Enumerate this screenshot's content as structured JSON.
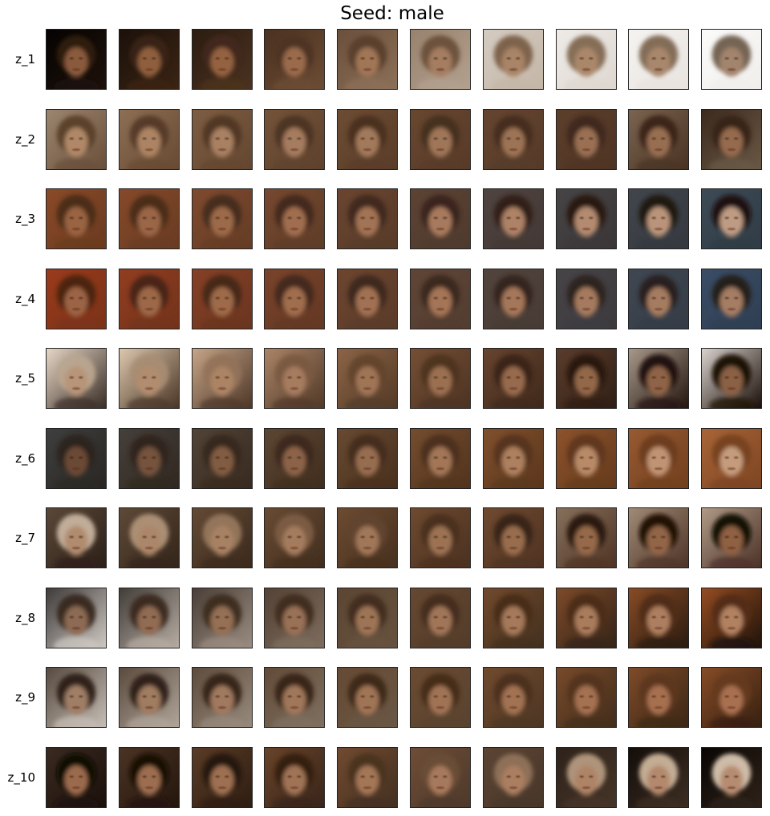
{
  "title": "Seed: male",
  "rows": [
    {
      "label": "z_1",
      "cells": [
        {
          "bg": "#050302",
          "bg2": "#1e120a",
          "hair": "#2e1b0f",
          "skin": "#8a5a3c"
        },
        {
          "bg": "#1b110a",
          "bg2": "#3a2414",
          "hair": "#3a2213",
          "skin": "#8f5e3e"
        },
        {
          "bg": "#2c1c11",
          "bg2": "#4b3220",
          "hair": "#41291a",
          "skin": "#946240"
        },
        {
          "bg": "#4a3120",
          "bg2": "#6c4c34",
          "hair": "#4d3322",
          "skin": "#9a6b4b"
        },
        {
          "bg": "#6a4f3b",
          "bg2": "#8c7058",
          "hair": "#5a3f2b",
          "skin": "#a07656"
        },
        {
          "bg": "#98826e",
          "bg2": "#b3a08e",
          "hair": "#6a4f3a",
          "skin": "#a57d60"
        },
        {
          "bg": "#d4cbc1",
          "bg2": "#c4b6a7",
          "hair": "#7a5e47",
          "skin": "#a98466"
        },
        {
          "bg": "#eeebe7",
          "bg2": "#ded7d0",
          "hair": "#80674f",
          "skin": "#ab876b"
        },
        {
          "bg": "#f5f3f1",
          "bg2": "#e8e3de",
          "hair": "#7d6650",
          "skin": "#a9876c"
        },
        {
          "bg": "#fbfbfa",
          "bg2": "#f0eeeb",
          "hair": "#6f5c4b",
          "skin": "#a3846d"
        }
      ]
    },
    {
      "label": "z_2",
      "cells": [
        {
          "bg": "#9c8670",
          "bg2": "#6a4f3a",
          "hair": "#5a3e29",
          "skin": "#b08868"
        },
        {
          "bg": "#8d6f55",
          "bg2": "#684a33",
          "hair": "#553926",
          "skin": "#ad8464"
        },
        {
          "bg": "#7d5d43",
          "bg2": "#644630",
          "hair": "#503523",
          "skin": "#a98062"
        },
        {
          "bg": "#735339",
          "bg2": "#5e412c",
          "hair": "#4c3322",
          "skin": "#a67c5e"
        },
        {
          "bg": "#6c4c33",
          "bg2": "#5a3d29",
          "hair": "#483020",
          "skin": "#a3795b"
        },
        {
          "bg": "#684730",
          "bg2": "#573a27",
          "hair": "#452e1e",
          "skin": "#a07658"
        },
        {
          "bg": "#654530",
          "bg2": "#553a28",
          "hair": "#432c1d",
          "skin": "#9d7355"
        },
        {
          "bg": "#5c3f2b",
          "bg2": "#4e3424",
          "hair": "#3e281a",
          "skin": "#9a7053"
        },
        {
          "bg": "#7a6450",
          "bg2": "#4a3222",
          "hair": "#3a2518",
          "skin": "#986e51"
        },
        {
          "bg": "#3c2a1e",
          "bg2": "#6a5846",
          "hair": "#352216",
          "skin": "#956b4e"
        }
      ]
    },
    {
      "label": "z_3",
      "cells": [
        {
          "bg": "#8a4a28",
          "bg2": "#6a3a20",
          "hair": "#4a2a17",
          "skin": "#9a6443"
        },
        {
          "bg": "#86492a",
          "bg2": "#683b22",
          "hair": "#482a18",
          "skin": "#9b6646"
        },
        {
          "bg": "#7f4a2e",
          "bg2": "#643c25",
          "hair": "#452a1a",
          "skin": "#9d6a4a"
        },
        {
          "bg": "#76482f",
          "bg2": "#5e3c27",
          "hair": "#42291b",
          "skin": "#a06e4f"
        },
        {
          "bg": "#6a4530",
          "bg2": "#573b29",
          "hair": "#3e271b",
          "skin": "#a37354"
        },
        {
          "bg": "#5c4334",
          "bg2": "#4e3a2d",
          "hair": "#38241a",
          "skin": "#a87a5d"
        },
        {
          "bg": "#4f4440",
          "bg2": "#433835",
          "hair": "#2f1f18",
          "skin": "#ae8266"
        },
        {
          "bg": "#474446",
          "bg2": "#3a3638",
          "hair": "#261912",
          "skin": "#b48b70"
        },
        {
          "bg": "#41464c",
          "bg2": "#35393f",
          "hair": "#20140e",
          "skin": "#ba947a"
        },
        {
          "bg": "#3d4b57",
          "bg2": "#303b45",
          "hair": "#1a100b",
          "skin": "#bf9b83"
        }
      ]
    },
    {
      "label": "z_4",
      "cells": [
        {
          "bg": "#9a3a1c",
          "bg2": "#7a3218",
          "hair": "#4a2412",
          "skin": "#9c6444"
        },
        {
          "bg": "#913d20",
          "bg2": "#72331b",
          "hair": "#472515",
          "skin": "#9d6747"
        },
        {
          "bg": "#864025",
          "bg2": "#6a3520",
          "hair": "#442618",
          "skin": "#9e6a4a"
        },
        {
          "bg": "#7a432a",
          "bg2": "#633824",
          "hair": "#41281a",
          "skin": "#a06d4e"
        },
        {
          "bg": "#6d452f",
          "bg2": "#5a3b29",
          "hair": "#3d281c",
          "skin": "#a27152"
        },
        {
          "bg": "#5f4536",
          "bg2": "#523d30",
          "hair": "#39271d",
          "skin": "#a47456"
        },
        {
          "bg": "#52443d",
          "bg2": "#473b35",
          "hair": "#33251e",
          "skin": "#a5775a"
        },
        {
          "bg": "#474448",
          "bg2": "#3d3a3e",
          "hair": "#2c221d",
          "skin": "#a67a5e"
        },
        {
          "bg": "#3f4752",
          "bg2": "#353c46",
          "hair": "#261e1a",
          "skin": "#a67c61"
        },
        {
          "bg": "#3a4d66",
          "bg2": "#2f3e52",
          "hair": "#211a17",
          "skin": "#a57d64"
        }
      ]
    },
    {
      "label": "z_5",
      "cells": [
        {
          "bg": "#e6d6c6",
          "bg2": "#3a2e26",
          "hair": "#b9a58f",
          "skin": "#b89478"
        },
        {
          "bg": "#dcc6ad",
          "bg2": "#4a3626",
          "hair": "#a78c72",
          "skin": "#b28c6e"
        },
        {
          "bg": "#c6a588",
          "bg2": "#4e3728",
          "hair": "#927258",
          "skin": "#ac8465"
        },
        {
          "bg": "#aa8467",
          "bg2": "#513927",
          "hair": "#7a5a42",
          "skin": "#a67c5e"
        },
        {
          "bg": "#8c6447",
          "bg2": "#533a26",
          "hair": "#62432d",
          "skin": "#a07557"
        },
        {
          "bg": "#754f35",
          "bg2": "#4d3322",
          "hair": "#4e321f",
          "skin": "#9b7051"
        },
        {
          "bg": "#674430",
          "bg2": "#3f291b",
          "hair": "#3a2416",
          "skin": "#976b4d"
        },
        {
          "bg": "#5a3c2b",
          "bg2": "#301f15",
          "hair": "#29180e",
          "skin": "#93674a"
        },
        {
          "bg": "#a8988a",
          "bg2": "#24160e",
          "hair": "#1c0f08",
          "skin": "#8f6347"
        },
        {
          "bg": "#d9d2cc",
          "bg2": "#1a0e08",
          "hair": "#140a05",
          "skin": "#8b6045"
        }
      ]
    },
    {
      "label": "z_6",
      "cells": [
        {
          "bg": "#3e3f3e",
          "bg2": "#2a2623",
          "hair": "#2a211b",
          "skin": "#6a4a36"
        },
        {
          "bg": "#46403a",
          "bg2": "#302720",
          "hair": "#2f231b",
          "skin": "#75523c"
        },
        {
          "bg": "#514336",
          "bg2": "#382a1f",
          "hair": "#35261b",
          "skin": "#815b42"
        },
        {
          "bg": "#5c4633",
          "bg2": "#402d1e",
          "hair": "#3c291c",
          "skin": "#8c6448"
        },
        {
          "bg": "#684a31",
          "bg2": "#48301e",
          "hair": "#432b1b",
          "skin": "#976d4f"
        },
        {
          "bg": "#744d2f",
          "bg2": "#51331d",
          "hair": "#4b2e1a",
          "skin": "#a27656"
        },
        {
          "bg": "#80502d",
          "bg2": "#5a361c",
          "hair": "#55321a",
          "skin": "#ad805f"
        },
        {
          "bg": "#8c532c",
          "bg2": "#653a1c",
          "hair": "#60371b",
          "skin": "#b88a68"
        },
        {
          "bg": "#985a32",
          "bg2": "#703f1e",
          "hair": "#6b3c1d",
          "skin": "#c09373"
        },
        {
          "bg": "#a86438",
          "bg2": "#7c4522",
          "hair": "#76411f",
          "skin": "#c59b7c"
        }
      ]
    },
    {
      "label": "z_7",
      "cells": [
        {
          "bg": "#5a4838",
          "bg2": "#2c2017",
          "hair": "#c7b39e",
          "skin": "#b08b6e"
        },
        {
          "bg": "#5e4937",
          "bg2": "#33251a",
          "hair": "#b09479",
          "skin": "#ac8668"
        },
        {
          "bg": "#634a35",
          "bg2": "#3a291c",
          "hair": "#96775c",
          "skin": "#a88163"
        },
        {
          "bg": "#684b33",
          "bg2": "#412d1e",
          "hair": "#7c5c43",
          "skin": "#a47c5d"
        },
        {
          "bg": "#6c4b31",
          "bg2": "#47301f",
          "hair": "#614330",
          "skin": "#a07758"
        },
        {
          "bg": "#6e4a30",
          "bg2": "#4b3120",
          "hair": "#4a301f",
          "skin": "#9c7253"
        },
        {
          "bg": "#6f4a30",
          "bg2": "#4e3221",
          "hair": "#372214",
          "skin": "#986d4e"
        },
        {
          "bg": "#86705c",
          "bg2": "#4f3324",
          "hair": "#27170c",
          "skin": "#95694a"
        },
        {
          "bg": "#a08a76",
          "bg2": "#4e3326",
          "hair": "#1b0e06",
          "skin": "#926546"
        },
        {
          "bg": "#b09a86",
          "bg2": "#4b3127",
          "hair": "#120804",
          "skin": "#8f6143"
        }
      ]
    },
    {
      "label": "z_8",
      "cells": [
        {
          "bg": "#3e3b3a",
          "bg2": "#cfc8c2",
          "hair": "#35291f",
          "skin": "#8d6a52"
        },
        {
          "bg": "#433d39",
          "bg2": "#b6aca3",
          "hair": "#38291e",
          "skin": "#916c53"
        },
        {
          "bg": "#4a3f37",
          "bg2": "#9a8c80",
          "hair": "#3b2a1d",
          "skin": "#956f54"
        },
        {
          "bg": "#534235",
          "bg2": "#7e6d5e",
          "hair": "#3e2b1c",
          "skin": "#997156"
        },
        {
          "bg": "#5c4533",
          "bg2": "#66523f",
          "hair": "#412b1b",
          "skin": "#9d7457"
        },
        {
          "bg": "#664831",
          "bg2": "#523c29",
          "hair": "#442c1a",
          "skin": "#a17659"
        },
        {
          "bg": "#71492d",
          "bg2": "#42301f",
          "hair": "#472c19",
          "skin": "#a5795a"
        },
        {
          "bg": "#7c4a29",
          "bg2": "#352417",
          "hair": "#4b2d18",
          "skin": "#a97b5c"
        },
        {
          "bg": "#884b26",
          "bg2": "#2a1b10",
          "hair": "#4f2d17",
          "skin": "#ad7e5e"
        },
        {
          "bg": "#954c22",
          "bg2": "#1f130a",
          "hair": "#532d15",
          "skin": "#b18160"
        }
      ]
    },
    {
      "label": "z_9",
      "cells": [
        {
          "bg": "#574a3f",
          "bg2": "#c6beb6",
          "hair": "#2a1d14",
          "skin": "#a07e66"
        },
        {
          "bg": "#5b4b3e",
          "bg2": "#b0a59a",
          "hair": "#2d1f15",
          "skin": "#a07b61"
        },
        {
          "bg": "#5e4b3b",
          "bg2": "#978a7d",
          "hair": "#312116",
          "skin": "#a0795e"
        },
        {
          "bg": "#624b38",
          "bg2": "#7f7061",
          "hair": "#362317",
          "skin": "#a0775a"
        },
        {
          "bg": "#664a34",
          "bg2": "#695745",
          "hair": "#3c2618",
          "skin": "#a07557"
        },
        {
          "bg": "#6b4a31",
          "bg2": "#58432f",
          "hair": "#432a19",
          "skin": "#a17354"
        },
        {
          "bg": "#704a2e",
          "bg2": "#4c3623",
          "hair": "#4b2e1a",
          "skin": "#a27252"
        },
        {
          "bg": "#774a2b",
          "bg2": "#432d1b",
          "hair": "#53321b",
          "skin": "#a47151"
        },
        {
          "bg": "#7e4b29",
          "bg2": "#3c2616",
          "hair": "#5c361c",
          "skin": "#a67050"
        },
        {
          "bg": "#864c27",
          "bg2": "#362011",
          "hair": "#643a1e",
          "skin": "#a8704f"
        }
      ]
    },
    {
      "label": "z_10",
      "cells": [
        {
          "bg": "#3a2a20",
          "bg2": "#1a100a",
          "hair": "#0e0805",
          "skin": "#9b6b4d"
        },
        {
          "bg": "#4a3323",
          "bg2": "#24160d",
          "hair": "#160c06",
          "skin": "#9c6d4f"
        },
        {
          "bg": "#5a3c26",
          "bg2": "#2e1d12",
          "hair": "#22140a",
          "skin": "#9e7051"
        },
        {
          "bg": "#684329",
          "bg2": "#38251a",
          "hair": "#32200f",
          "skin": "#a07354"
        },
        {
          "bg": "#714a30",
          "bg2": "#433021",
          "hair": "#4a3220",
          "skin": "#a37657"
        },
        {
          "bg": "#6e4d36",
          "bg2": "#4d392b",
          "hair": "#6a4d37",
          "skin": "#a7795b"
        },
        {
          "bg": "#5c4434",
          "bg2": "#473629",
          "hair": "#8f7359",
          "skin": "#ab7e60"
        },
        {
          "bg": "#2e221a",
          "bg2": "#463527",
          "hair": "#b49a7f",
          "skin": "#af8366"
        },
        {
          "bg": "#140d09",
          "bg2": "#3d2e23",
          "hair": "#cbb49b",
          "skin": "#b3886c"
        },
        {
          "bg": "#0a0604",
          "bg2": "#2e2219",
          "hair": "#d8c5b0",
          "skin": "#b68c71"
        }
      ]
    }
  ]
}
